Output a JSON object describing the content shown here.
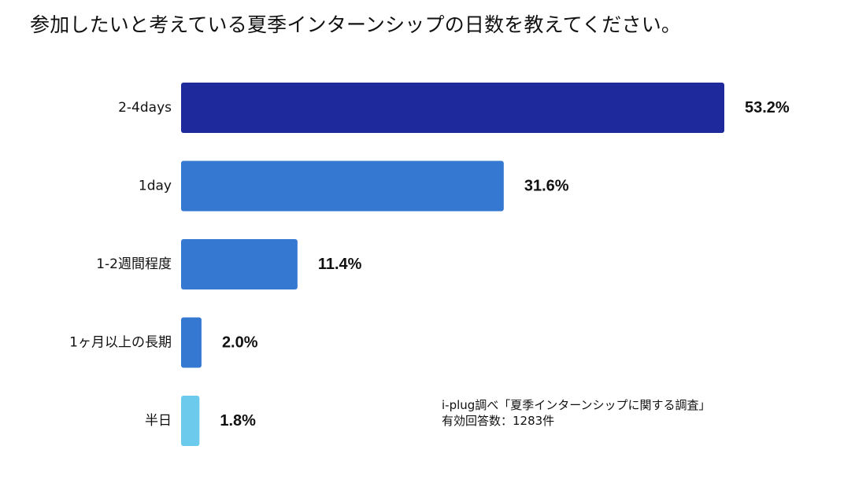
{
  "title": "参加したいと考えている夏季インターンシップの日数を教えてください。",
  "source": {
    "line1": "i-plug調べ「夏季インターンシップに関する調査」",
    "line2": "有効回答数：1283件"
  },
  "chart_data": {
    "type": "bar",
    "orientation": "horizontal",
    "title": "参加したいと考えている夏季インターンシップの日数を教えてください。",
    "categories": [
      "2-4days",
      "1day",
      "1-2週間程度",
      "1ヶ月以上の長期",
      "半日"
    ],
    "values": [
      53.2,
      31.6,
      11.4,
      2.0,
      1.8
    ],
    "value_labels": [
      "53.2%",
      "31.6%",
      "11.4%",
      "2.0%",
      "1.8%"
    ],
    "unit": "%",
    "colors": [
      "#1e2a9c",
      "#3578d2",
      "#3578d2",
      "#3578d2",
      "#6ccbec"
    ],
    "xlim": [
      0,
      100
    ],
    "grid": false,
    "legend": "none"
  }
}
